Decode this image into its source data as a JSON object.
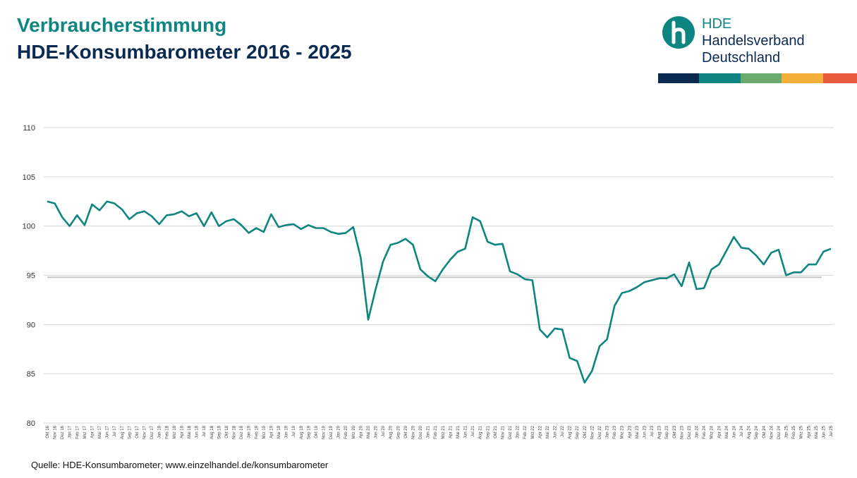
{
  "header": {
    "title": "Verbraucherstimmung",
    "subtitle": "HDE-Konsumbarometer 2016 - 2025"
  },
  "logo": {
    "line1": "HDE",
    "line2": "Handelsverband",
    "line3": "Deutschland",
    "icon": "hde-h-logo-icon",
    "bar_colors": [
      "#0a2a52",
      "#0e8580",
      "#6aaa6e",
      "#f2b03a",
      "#e85a3c"
    ]
  },
  "source": "Quelle: HDE-Konsumbarometer; www.einzelhandel.de/konsumbarometer",
  "chart_data": {
    "type": "line",
    "title": "HDE-Konsumbarometer 2016 - 2025",
    "xlabel": "",
    "ylabel": "",
    "ylim": [
      80,
      110
    ],
    "yticks": [
      80,
      85,
      90,
      95,
      100,
      105,
      110
    ],
    "grid": true,
    "line_color": "#0e8580",
    "reference_line": 94.8,
    "reference_color": "#c8c8c8",
    "categories": [
      "Okt 16",
      "Nov 16",
      "Dez 16",
      "Jan 17",
      "Feb 17",
      "Mrz 17",
      "Apr 17",
      "Mai 17",
      "Jun 17",
      "Jul 17",
      "Aug 17",
      "Sep 17",
      "Okt 17",
      "Nov 17",
      "Dez 17",
      "Jan 18",
      "Feb 18",
      "Mrz 18",
      "Apr 18",
      "Mai 18",
      "Jun 18",
      "Jul 18",
      "Aug 18",
      "Sep 18",
      "Okt 18",
      "Nov 18",
      "Dez 18",
      "Jan 19",
      "Feb 19",
      "Mrz 19",
      "Apr 19",
      "Mai 19",
      "Jun 19",
      "Jul 19",
      "Aug 19",
      "Sep 19",
      "Okt 19",
      "Nov 19",
      "Dez 19",
      "Jan 20",
      "Feb 20",
      "Mrz 20",
      "Apr 20",
      "Mai 20",
      "Jun 20",
      "Jul 20",
      "Aug 20",
      "Sep 20",
      "Okt 20",
      "Nov 20",
      "Dez 20",
      "Jan 21",
      "Feb 21",
      "Mrz 21",
      "Apr 21",
      "Mai 21",
      "Jun 21",
      "Jul 21",
      "Aug 21",
      "Sep 21",
      "Okt 21",
      "Nov 21",
      "Dez 21",
      "Jan 22",
      "Feb 22",
      "Mrz 22",
      "Apr 22",
      "Mai 22",
      "Jun 22",
      "Jul 22",
      "Aug 22",
      "Sep 22",
      "Okt 22",
      "Nov 22",
      "Dez 22",
      "Jan 23",
      "Feb 23",
      "Mrz 23",
      "Apr 23",
      "Mai 23",
      "Jun 23",
      "Jul 23",
      "Aug 23",
      "Sep 23",
      "Okt 23",
      "Nov 23",
      "Dez 23",
      "Jan 24",
      "Feb 24",
      "Mrz 24",
      "Apr 24",
      "Mai 24",
      "Jun 24",
      "Jul 24",
      "Aug 24",
      "Sep 24",
      "Okt 24",
      "Nov 24",
      "Dez 24",
      "Jan 25",
      "Feb 25",
      "Mrz 25",
      "Apr 25",
      "Mai 25",
      "Jun 25",
      "Jul 25"
    ],
    "series": [
      {
        "name": "HDE-Konsumbarometer",
        "values": [
          102.5,
          102.3,
          100.9,
          100.0,
          101.1,
          100.1,
          102.2,
          101.6,
          102.5,
          102.3,
          101.7,
          100.7,
          101.3,
          101.5,
          101.0,
          100.2,
          101.1,
          101.2,
          101.5,
          101.0,
          101.3,
          100.0,
          101.4,
          100.0,
          100.5,
          100.7,
          100.1,
          99.3,
          99.8,
          99.4,
          101.2,
          99.9,
          100.1,
          100.2,
          99.7,
          100.1,
          99.8,
          99.8,
          99.4,
          99.2,
          99.3,
          99.9,
          96.8,
          90.5,
          93.6,
          96.4,
          98.1,
          98.3,
          98.7,
          98.1,
          95.6,
          94.9,
          94.4,
          95.6,
          96.6,
          97.4,
          97.7,
          100.9,
          100.5,
          98.4,
          98.1,
          98.2,
          95.4,
          95.1,
          94.6,
          94.5,
          89.5,
          88.7,
          89.6,
          89.5,
          86.6,
          86.3,
          84.1,
          85.3,
          87.8,
          88.5,
          91.9,
          93.2,
          93.4,
          93.8,
          94.3,
          94.5,
          94.7,
          94.7,
          95.1,
          93.9,
          96.3,
          93.6,
          93.7,
          95.6,
          96.1,
          97.5,
          98.9,
          97.8,
          97.7,
          97.0,
          96.1,
          97.3,
          97.6,
          95.0,
          95.3,
          95.3,
          96.1,
          96.1,
          97.4,
          97.7
        ]
      }
    ]
  }
}
